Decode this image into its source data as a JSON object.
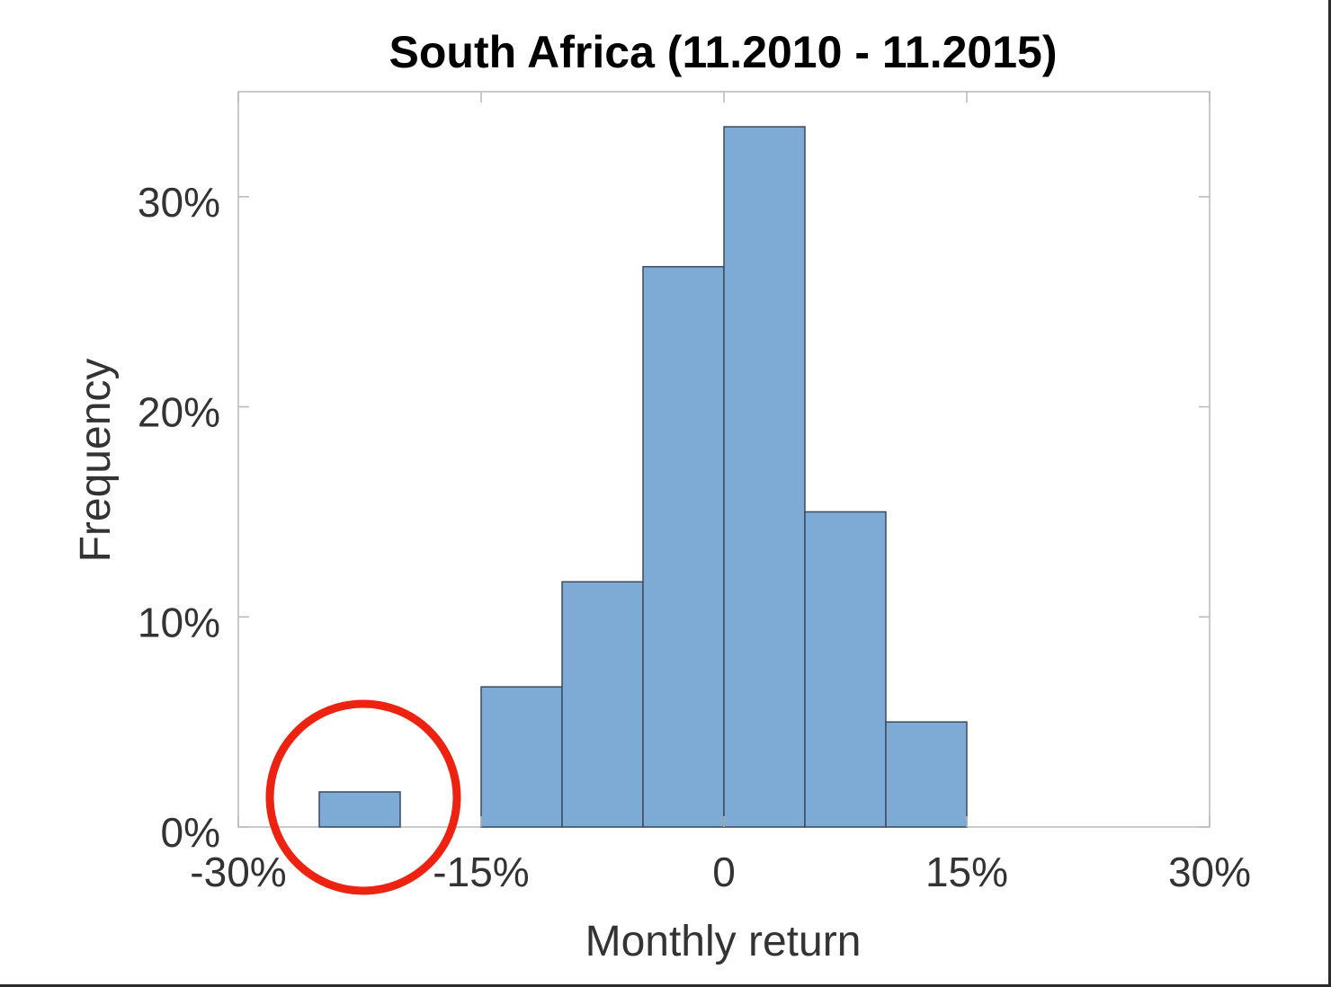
{
  "chart_data": {
    "type": "bar",
    "title": "South Africa (11.2010 - 11.2015)",
    "xlabel": "Monthly return",
    "ylabel": "Frequency",
    "xlim": [
      -30,
      30
    ],
    "ylim": [
      0,
      35
    ],
    "x_ticks": [
      -30,
      -15,
      0,
      15,
      30
    ],
    "x_tick_labels": [
      "-30%",
      "-15%",
      "0",
      "15%",
      "30%"
    ],
    "y_ticks": [
      0,
      10,
      20,
      30
    ],
    "y_tick_labels": [
      "0%",
      "10%",
      "20%",
      "30%"
    ],
    "bin_edges": [
      -30,
      -25,
      -20,
      -15,
      -10,
      -5,
      0,
      5,
      10,
      15,
      20,
      25,
      30
    ],
    "series": [
      {
        "values": [
          0,
          1.67,
          0,
          6.67,
          11.67,
          26.67,
          33.33,
          15.0,
          5.0,
          0,
          0,
          0
        ]
      }
    ],
    "grid": false,
    "bar_color": "#7eabd6",
    "bar_edge_color": "#3a4a5c",
    "annotations": [
      {
        "type": "circle",
        "color": "#ee2211",
        "center": [
          -21.5,
          1.5
        ]
      }
    ]
  }
}
